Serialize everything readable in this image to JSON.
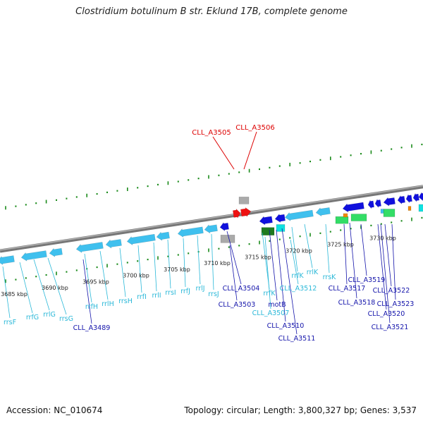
{
  "title": "Clostridium botulinum B str. Eklund 17B, complete genome",
  "footer": {
    "accession": "Accession: NC_010674",
    "stats": "Topology: circular; Length: 3,800,327 bp; Genes: 3,537"
  },
  "colors": {
    "backbone": "#8c8c8c",
    "tick": "#1a8a1a",
    "rna_gene": "#3fc0ee",
    "cds": "#1010dd",
    "label_cds": "#1313aa",
    "label_rna": "#2ab8d8",
    "label_highlight": "#dd0000",
    "pseudo": "#aaaaaa",
    "green_block": "#1f7a1f",
    "cyan_block": "#10e0e0",
    "light_green_block": "#33dd66",
    "orange_block": "#f08a00"
  },
  "scale": {
    "start_kbp": 3685,
    "end_kbp": 3730,
    "step_kbp": 5,
    "labels": [
      "3685 kbp",
      "3690 kbp",
      "3695 kbp",
      "3700 kbp",
      "3705 kbp",
      "3710 kbp",
      "3715 kbp",
      "3720 kbp",
      "3725 kbp",
      "3730 kbp"
    ]
  },
  "highlight_labels": [
    "CLL_A3505",
    "CLL_A3506"
  ],
  "gene_labels": [
    {
      "text": "rrsF",
      "type": "rna"
    },
    {
      "text": "rrfG",
      "type": "rna"
    },
    {
      "text": "rrlG",
      "type": "rna"
    },
    {
      "text": "rrsG",
      "type": "rna"
    },
    {
      "text": "CLL_A3489",
      "type": "cds"
    },
    {
      "text": "rrfH",
      "type": "rna"
    },
    {
      "text": "rrlH",
      "type": "rna"
    },
    {
      "text": "rrsH",
      "type": "rna"
    },
    {
      "text": "rrfI",
      "type": "rna"
    },
    {
      "text": "rrlI",
      "type": "rna"
    },
    {
      "text": "rrsI",
      "type": "rna"
    },
    {
      "text": "rrfJ",
      "type": "rna"
    },
    {
      "text": "rrlJ",
      "type": "rna"
    },
    {
      "text": "rrsJ",
      "type": "rna"
    },
    {
      "text": "CLL_A3504",
      "type": "cds"
    },
    {
      "text": "CLL_A3503",
      "type": "cds"
    },
    {
      "text": "CLL_A3507",
      "type": "rna"
    },
    {
      "text": "rrfK",
      "type": "rna"
    },
    {
      "text": "motB",
      "type": "cds"
    },
    {
      "text": "CLL_A3510",
      "type": "cds"
    },
    {
      "text": "CLL_A3511",
      "type": "cds"
    },
    {
      "text": "rrfK",
      "type": "rna"
    },
    {
      "text": "rrlK",
      "type": "rna"
    },
    {
      "text": "CLL_A3512",
      "type": "rna"
    },
    {
      "text": "rrsK",
      "type": "rna"
    },
    {
      "text": "CLL_A3517",
      "type": "cds"
    },
    {
      "text": "CLL_A3518",
      "type": "cds"
    },
    {
      "text": "CLL_A3519",
      "type": "cds"
    },
    {
      "text": "CLL_A3520",
      "type": "cds"
    },
    {
      "text": "CLL_A3521",
      "type": "cds"
    },
    {
      "text": "CLL_A3522",
      "type": "cds"
    },
    {
      "text": "CLL_A3523",
      "type": "cds"
    }
  ]
}
